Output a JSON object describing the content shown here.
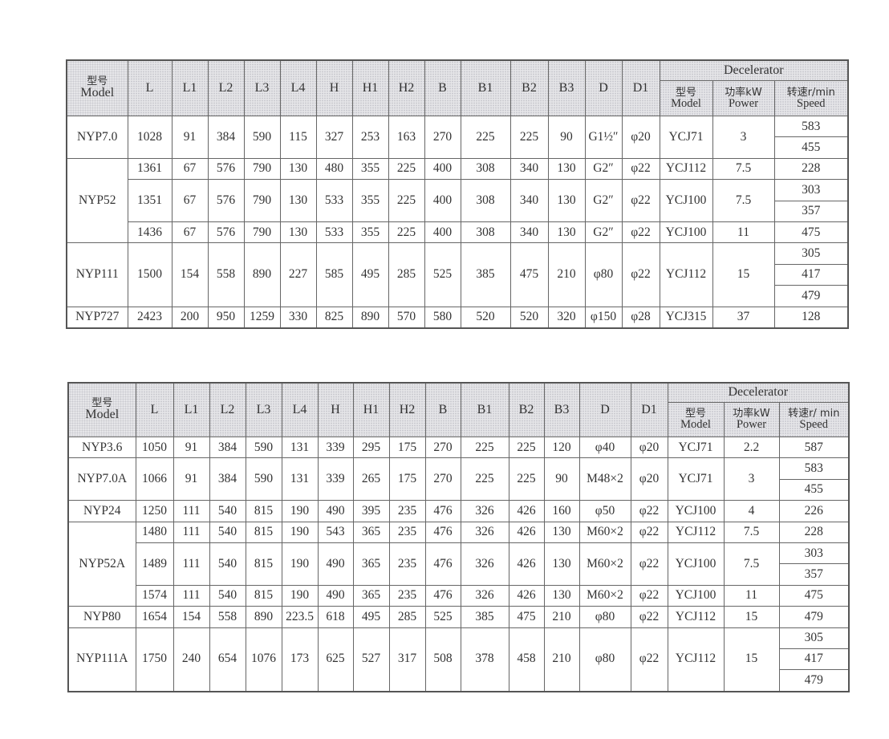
{
  "tables": [
    {
      "header": {
        "model_cn": "型号",
        "model_en": "Model",
        "columns": [
          "L",
          "L1",
          "L2",
          "L3",
          "L4",
          "H",
          "H1",
          "H2",
          "B",
          "B1",
          "B2",
          "B3",
          "D",
          "D1"
        ],
        "decelerator": "Decelerator",
        "dec_model_cn": "型号",
        "dec_model_en": "Model",
        "dec_power_cn": "功率kW",
        "dec_power_en": "Power",
        "dec_speed_cn": "转速r/min",
        "dec_speed_en": "Speed"
      },
      "groups": [
        {
          "model": "NYP7.0",
          "subs": [
            {
              "values": [
                "1028",
                "91",
                "384",
                "590",
                "115",
                "327",
                "253",
                "163",
                "270",
                "225",
                "225",
                "90",
                "G1½″",
                "φ20",
                "YCJ71",
                "3"
              ],
              "speeds": [
                "583",
                "455"
              ]
            }
          ]
        },
        {
          "model": "NYP52",
          "subs": [
            {
              "values": [
                "1361",
                "67",
                "576",
                "790",
                "130",
                "480",
                "355",
                "225",
                "400",
                "308",
                "340",
                "130",
                "G2″",
                "φ22",
                "YCJ112",
                "7.5"
              ],
              "speeds": [
                "228"
              ]
            },
            {
              "values": [
                "1351",
                "67",
                "576",
                "790",
                "130",
                "533",
                "355",
                "225",
                "400",
                "308",
                "340",
                "130",
                "G2″",
                "φ22",
                "YCJ100",
                "7.5"
              ],
              "speeds": [
                "303",
                "357"
              ]
            },
            {
              "values": [
                "1436",
                "67",
                "576",
                "790",
                "130",
                "533",
                "355",
                "225",
                "400",
                "308",
                "340",
                "130",
                "G2″",
                "φ22",
                "YCJ100",
                "11"
              ],
              "speeds": [
                "475"
              ]
            }
          ]
        },
        {
          "model": "NYP111",
          "subs": [
            {
              "values": [
                "1500",
                "154",
                "558",
                "890",
                "227",
                "585",
                "495",
                "285",
                "525",
                "385",
                "475",
                "210",
                "φ80",
                "φ22",
                "YCJ112",
                "15"
              ],
              "speeds": [
                "305",
                "417",
                "479"
              ]
            }
          ]
        },
        {
          "model": "NYP727",
          "subs": [
            {
              "values": [
                "2423",
                "200",
                "950",
                "1259",
                "330",
                "825",
                "890",
                "570",
                "580",
                "520",
                "520",
                "320",
                "φ150",
                "φ28",
                "YCJ315",
                "37"
              ],
              "speeds": [
                "128"
              ]
            }
          ]
        }
      ]
    },
    {
      "header": {
        "model_cn": "型号",
        "model_en": "Model",
        "columns": [
          "L",
          "L1",
          "L2",
          "L3",
          "L4",
          "H",
          "H1",
          "H2",
          "B",
          "B1",
          "B2",
          "B3",
          "D",
          "D1"
        ],
        "decelerator": "Decelerator",
        "dec_model_cn": "型号",
        "dec_model_en": "Model",
        "dec_power_cn": "功率kW",
        "dec_power_en": "Power",
        "dec_speed_cn": "转速r/ min",
        "dec_speed_en": "Speed"
      },
      "groups": [
        {
          "model": "NYP3.6",
          "subs": [
            {
              "values": [
                "1050",
                "91",
                "384",
                "590",
                "131",
                "339",
                "295",
                "175",
                "270",
                "225",
                "225",
                "120",
                "φ40",
                "φ20",
                "YCJ71",
                "2.2"
              ],
              "speeds": [
                "587"
              ]
            }
          ]
        },
        {
          "model": "NYP7.0A",
          "subs": [
            {
              "values": [
                "1066",
                "91",
                "384",
                "590",
                "131",
                "339",
                "265",
                "175",
                "270",
                "225",
                "225",
                "90",
                "M48×2",
                "φ20",
                "YCJ71",
                "3"
              ],
              "speeds": [
                "583",
                "455"
              ]
            }
          ]
        },
        {
          "model": "NYP24",
          "subs": [
            {
              "values": [
                "1250",
                "111",
                "540",
                "815",
                "190",
                "490",
                "395",
                "235",
                "476",
                "326",
                "426",
                "160",
                "φ50",
                "φ22",
                "YCJ100",
                "4"
              ],
              "speeds": [
                "226"
              ]
            }
          ]
        },
        {
          "model": "NYP52A",
          "subs": [
            {
              "values": [
                "1480",
                "111",
                "540",
                "815",
                "190",
                "543",
                "365",
                "235",
                "476",
                "326",
                "426",
                "130",
                "M60×2",
                "φ22",
                "YCJ112",
                "7.5"
              ],
              "speeds": [
                "228"
              ]
            },
            {
              "values": [
                "1489",
                "111",
                "540",
                "815",
                "190",
                "490",
                "365",
                "235",
                "476",
                "326",
                "426",
                "130",
                "M60×2",
                "φ22",
                "YCJ100",
                "7.5"
              ],
              "speeds": [
                "303",
                "357"
              ]
            },
            {
              "values": [
                "1574",
                "111",
                "540",
                "815",
                "190",
                "490",
                "365",
                "235",
                "476",
                "326",
                "426",
                "130",
                "M60×2",
                "φ22",
                "YCJ100",
                "11"
              ],
              "speeds": [
                "475"
              ]
            }
          ]
        },
        {
          "model": "NYP80",
          "subs": [
            {
              "values": [
                "1654",
                "154",
                "558",
                "890",
                "223.5",
                "618",
                "495",
                "285",
                "525",
                "385",
                "475",
                "210",
                "φ80",
                "φ22",
                "YCJ112",
                "15"
              ],
              "speeds": [
                "479"
              ]
            }
          ]
        },
        {
          "model": "NYP111A",
          "subs": [
            {
              "values": [
                "1750",
                "240",
                "654",
                "1076",
                "173",
                "625",
                "527",
                "317",
                "508",
                "378",
                "458",
                "210",
                "φ80",
                "φ22",
                "YCJ112",
                "15"
              ],
              "speeds": [
                "305",
                "417",
                "479"
              ]
            }
          ]
        }
      ]
    }
  ]
}
